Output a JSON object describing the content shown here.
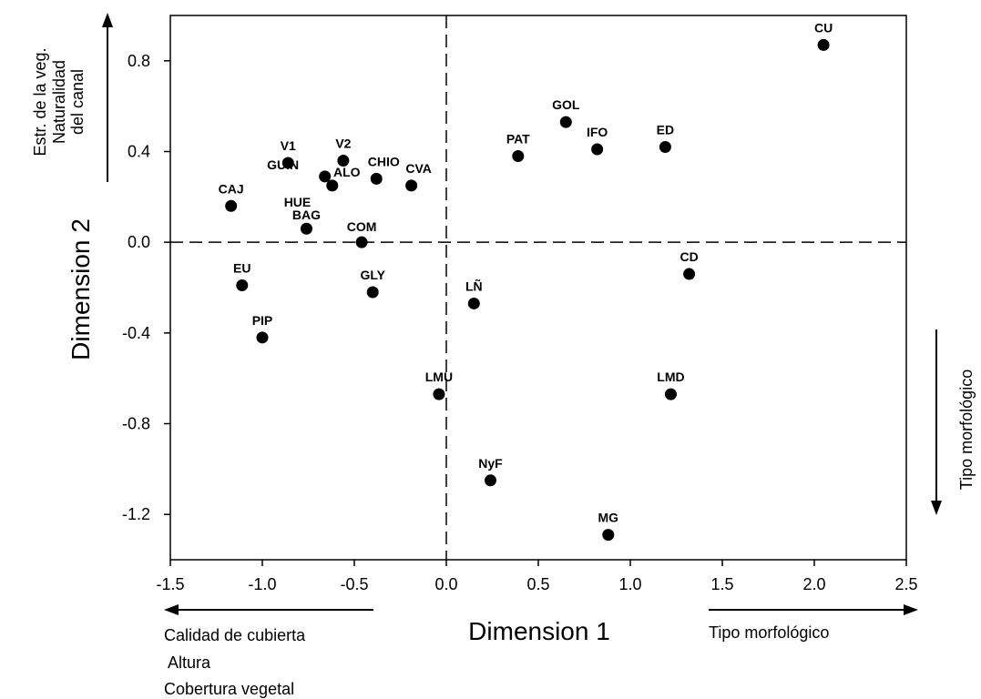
{
  "chart_data": {
    "type": "scatter",
    "title": "",
    "xlabel": "Dimension 1",
    "ylabel": "Dimension 2",
    "xlim": [
      -1.5,
      2.5
    ],
    "ylim": [
      -1.4,
      1.0
    ],
    "x_ticks": [
      -1.5,
      -1.0,
      -0.5,
      0.0,
      0.5,
      1.0,
      1.5,
      2.0,
      2.5
    ],
    "x_tick_labels": [
      "-1.5",
      "-1.0",
      "-0.5",
      "0.0",
      "0.5",
      "1.0",
      "1.5",
      "2.0",
      "2.5"
    ],
    "y_ticks": [
      0.8,
      0.4,
      0.0,
      -0.4,
      -0.8,
      -1.2
    ],
    "y_tick_labels": [
      "0.8",
      "0.4",
      "0.0",
      "-0.4",
      "-0.8",
      "-1.2"
    ],
    "grid": false,
    "reference_lines": {
      "x": 0.0,
      "y": 0.0,
      "style": "dashed"
    },
    "points": [
      {
        "label": "CU",
        "x": 2.05,
        "y": 0.87
      },
      {
        "label": "GOL",
        "x": 0.65,
        "y": 0.53
      },
      {
        "label": "IFO",
        "x": 0.82,
        "y": 0.41
      },
      {
        "label": "ED",
        "x": 1.19,
        "y": 0.42
      },
      {
        "label": "PAT",
        "x": 0.39,
        "y": 0.38
      },
      {
        "label": "V1",
        "x": -0.86,
        "y": 0.35
      },
      {
        "label": "V2",
        "x": -0.56,
        "y": 0.36
      },
      {
        "label": "GUIN",
        "x": -0.66,
        "y": 0.29
      },
      {
        "label": "ALO",
        "x": -0.62,
        "y": 0.25
      },
      {
        "label": "CHIO",
        "x": -0.38,
        "y": 0.28
      },
      {
        "label": "CVA",
        "x": -0.19,
        "y": 0.25
      },
      {
        "label": "CAJ",
        "x": -1.17,
        "y": 0.16
      },
      {
        "label": "HUE",
        "x": -0.76,
        "y": 0.06
      },
      {
        "label": "BAG",
        "x": -0.76,
        "y": 0.06
      },
      {
        "label": "COM",
        "x": -0.46,
        "y": 0.0
      },
      {
        "label": "EU",
        "x": -1.11,
        "y": -0.19
      },
      {
        "label": "GLY",
        "x": -0.4,
        "y": -0.22
      },
      {
        "label": "LÑ",
        "x": 0.15,
        "y": -0.27
      },
      {
        "label": "CD",
        "x": 1.32,
        "y": -0.14
      },
      {
        "label": "PIP",
        "x": -1.0,
        "y": -0.42
      },
      {
        "label": "LMU",
        "x": -0.04,
        "y": -0.67
      },
      {
        "label": "LMD",
        "x": 1.22,
        "y": -0.67
      },
      {
        "label": "NyF",
        "x": 0.24,
        "y": -1.05
      },
      {
        "label": "MG",
        "x": 0.88,
        "y": -1.29
      }
    ],
    "annotations": {
      "top_left": [
        "Estr. de la veg.",
        "Naturalidad",
        "del canal"
      ],
      "right": "Tipo morfológico",
      "bottom_left": [
        "Calidad de cubierta",
        "Altura",
        "Cobertura vegetal"
      ],
      "bottom_right": "Tipo morfológico"
    }
  }
}
